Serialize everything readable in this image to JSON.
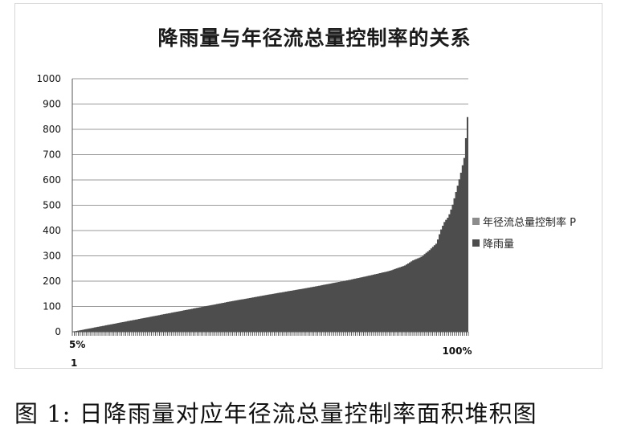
{
  "chart_data": {
    "type": "area",
    "title": "降雨量与年径流总量控制率的关系",
    "ylim": [
      0,
      1000
    ],
    "y_ticks": [
      0,
      100,
      200,
      300,
      400,
      500,
      600,
      700,
      800,
      900,
      1000
    ],
    "x_tick_labels": [
      "5%",
      "1",
      "100%"
    ],
    "grid": true,
    "legend_position": "right",
    "series": [
      {
        "name": "年径流总量控制率 P",
        "color": "#8c8c8c",
        "values": []
      },
      {
        "name": "降雨量",
        "color": "#4d4d4d",
        "x": [
          0,
          0.05,
          0.1,
          0.2,
          0.3,
          0.4,
          0.5,
          0.6,
          0.7,
          0.75,
          0.8,
          0.84,
          0.86,
          0.88,
          0.9,
          0.92,
          0.93,
          0.94,
          0.95,
          0.96,
          0.97,
          0.98,
          0.99,
          1.0
        ],
        "values": [
          0,
          15,
          30,
          60,
          90,
          120,
          148,
          175,
          205,
          222,
          240,
          262,
          282,
          295,
          320,
          350,
          400,
          435,
          455,
          500,
          560,
          620,
          690,
          890
        ]
      }
    ]
  },
  "caption": "图 1: 日降雨量对应年径流总量控制率面积堆积图"
}
